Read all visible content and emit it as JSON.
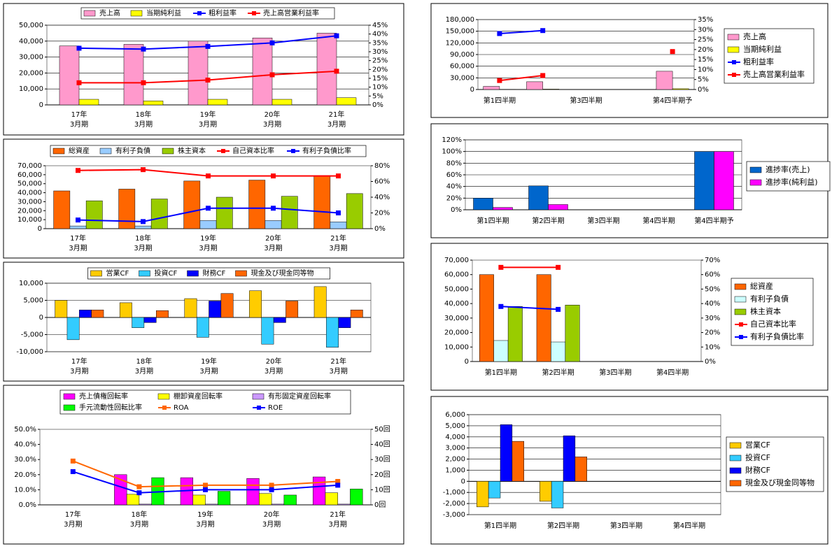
{
  "chart_data": [
    {
      "type": "bar",
      "categories": [
        [
          "17年",
          "3月期"
        ],
        [
          "18年",
          "3月期"
        ],
        [
          "19年",
          "3月期"
        ],
        [
          "20年",
          "3月期"
        ],
        [
          "21年",
          "3月期"
        ]
      ],
      "ylim": [
        0,
        50000
      ],
      "yticks": [
        0,
        {
          "value": 10000,
          "label": "10,000"
        },
        {
          "value": 20000,
          "label": "20,000"
        },
        {
          "value": 30000,
          "label": "30,000"
        },
        {
          "value": 40000,
          "label": "40,000"
        },
        {
          "value": 50000,
          "label": "50,000"
        }
      ],
      "y2lim": [
        0,
        45
      ],
      "y2ticks": [
        {
          "value": 0,
          "label": "0%"
        },
        {
          "value": 5,
          "label": "5%"
        },
        {
          "value": 10,
          "label": "10%"
        },
        {
          "value": 15,
          "label": "15%"
        },
        {
          "value": 20,
          "label": "20%"
        },
        {
          "value": 25,
          "label": "25%"
        },
        {
          "value": 30,
          "label": "30%"
        },
        {
          "value": 35,
          "label": "35%"
        },
        {
          "value": 40,
          "label": "40%"
        },
        {
          "value": 45,
          "label": "45%"
        }
      ],
      "grid": true,
      "legend": "top",
      "series": [
        {
          "name": "売上高",
          "type": "bar",
          "color": "#ff99cc",
          "values": [
            37000,
            38000,
            40000,
            42000,
            45000
          ]
        },
        {
          "name": "当期純利益",
          "type": "bar",
          "color": "#ffff00",
          "values": [
            3500,
            2500,
            3500,
            3500,
            4500
          ]
        },
        {
          "name": "粗利益率",
          "type": "line",
          "axis": "y2",
          "color": "#0000ff",
          "values": [
            32,
            31.5,
            33,
            35,
            39
          ]
        },
        {
          "name": "売上高営業利益率",
          "type": "line",
          "axis": "y2",
          "color": "#ff0000",
          "values": [
            12.5,
            12.5,
            14,
            17,
            19
          ]
        }
      ]
    },
    {
      "type": "bar",
      "categories": [
        [
          "17年",
          "3月期"
        ],
        [
          "18年",
          "3月期"
        ],
        [
          "19年",
          "3月期"
        ],
        [
          "20年",
          "3月期"
        ],
        [
          "21年",
          "3月期"
        ]
      ],
      "ylim": [
        0,
        70000
      ],
      "yticks": [
        0,
        {
          "value": 10000,
          "label": "10,000"
        },
        {
          "value": 20000,
          "label": "20,000"
        },
        {
          "value": 30000,
          "label": "30,000"
        },
        {
          "value": 40000,
          "label": "40,000"
        },
        {
          "value": 50000,
          "label": "50,000"
        },
        {
          "value": 60000,
          "label": "60,000"
        },
        {
          "value": 70000,
          "label": "70,000"
        }
      ],
      "y2lim": [
        0,
        80
      ],
      "y2ticks": [
        {
          "value": 0,
          "label": "0%"
        },
        {
          "value": 20,
          "label": "20%"
        },
        {
          "value": 40,
          "label": "40%"
        },
        {
          "value": 60,
          "label": "60%"
        },
        {
          "value": 80,
          "label": "80%"
        }
      ],
      "grid": false,
      "legend": "top",
      "series": [
        {
          "name": "総資産",
          "type": "bar",
          "color": "#ff6600",
          "values": [
            42000,
            44000,
            53000,
            54000,
            59000
          ]
        },
        {
          "name": "有利子負債",
          "type": "bar",
          "color": "#99ccff",
          "values": [
            3000,
            3000,
            9000,
            9000,
            7500
          ]
        },
        {
          "name": "株主資本",
          "type": "bar",
          "color": "#99cc00",
          "values": [
            31000,
            33000,
            35000,
            36000,
            39000
          ]
        },
        {
          "name": "自己資本比率",
          "type": "line",
          "axis": "y2",
          "color": "#ff0000",
          "values": [
            74,
            75,
            67,
            67,
            67
          ]
        },
        {
          "name": "有利子負債比率",
          "type": "line",
          "axis": "y2",
          "color": "#0000ff",
          "values": [
            11,
            9,
            26,
            26,
            20
          ]
        }
      ]
    },
    {
      "type": "bar",
      "categories": [
        [
          "17年",
          "3月期"
        ],
        [
          "18年",
          "3月期"
        ],
        [
          "19年",
          "3月期"
        ],
        [
          "20年",
          "3月期"
        ],
        [
          "21年",
          "3月期"
        ]
      ],
      "ylim": [
        -10000,
        10000
      ],
      "yticks": [
        {
          "value": -10000,
          "label": "-10,000"
        },
        {
          "value": -5000,
          "label": "-5,000"
        },
        0,
        {
          "value": 5000,
          "label": "5,000"
        },
        {
          "value": 10000,
          "label": "10,000"
        }
      ],
      "grid": true,
      "legend": "top",
      "series": [
        {
          "name": "営業CF",
          "type": "bar",
          "color": "#ffcc00",
          "values": [
            5000,
            4300,
            5500,
            7800,
            9000
          ]
        },
        {
          "name": "投資CF",
          "type": "bar",
          "color": "#33ccff",
          "values": [
            -6500,
            -3000,
            -5800,
            -7800,
            -8700
          ]
        },
        {
          "name": "財務CF",
          "type": "bar",
          "color": "#0000ff",
          "values": [
            2200,
            -1500,
            4800,
            -1500,
            -3000
          ]
        },
        {
          "name": "現金及び現金同等物",
          "type": "bar",
          "color": "#ff6600",
          "values": [
            2200,
            2000,
            7000,
            4800,
            2200
          ]
        }
      ]
    },
    {
      "type": "bar",
      "categories": [
        [
          "17年",
          "3月期"
        ],
        [
          "18年",
          "3月期"
        ],
        [
          "19年",
          "3月期"
        ],
        [
          "20年",
          "3月期"
        ],
        [
          "21年",
          "3月期"
        ]
      ],
      "ylim": [
        0,
        50
      ],
      "yticks": [
        {
          "value": 0,
          "label": "0.0%"
        },
        {
          "value": 10,
          "label": "10.0%"
        },
        {
          "value": 20,
          "label": "20.0%"
        },
        {
          "value": 30,
          "label": "30.0%"
        },
        {
          "value": 40,
          "label": "40.0%"
        },
        {
          "value": 50,
          "label": "50.0%"
        }
      ],
      "y2lim": [
        0,
        50
      ],
      "y2ticks": [
        {
          "value": 0,
          "label": "0回"
        },
        {
          "value": 10,
          "label": "10回"
        },
        {
          "value": 20,
          "label": "20回"
        },
        {
          "value": 30,
          "label": "30回"
        },
        {
          "value": 40,
          "label": "40回"
        },
        {
          "value": 50,
          "label": "50回"
        }
      ],
      "grid": false,
      "legend": "top",
      "series": [
        {
          "name": "売上債権回転率",
          "type": "bar",
          "axis": "y2",
          "color": "#ff00ff",
          "values": [
            null,
            20,
            18,
            17.5,
            18.5
          ]
        },
        {
          "name": "棚卸資産回転率",
          "type": "bar",
          "axis": "y2",
          "color": "#ffff00",
          "values": [
            null,
            7,
            6.5,
            7.5,
            8
          ]
        },
        {
          "name": "有形固定資産回転率",
          "type": "bar",
          "axis": "y2",
          "color": "#cc99ff",
          "values": [
            null,
            0.5,
            0.5,
            0.5,
            0.5
          ]
        },
        {
          "name": "手元流動性回転比率",
          "type": "bar",
          "axis": "y2",
          "color": "#00ff00",
          "values": [
            null,
            18,
            9,
            6.5,
            10.5
          ]
        },
        {
          "name": "ROA",
          "type": "line",
          "color": "#ff6600",
          "values": [
            29,
            12,
            13,
            13,
            15.5
          ]
        },
        {
          "name": "ROE",
          "type": "line",
          "color": "#0000ff",
          "values": [
            22,
            8,
            10,
            10,
            13
          ]
        }
      ]
    },
    {
      "type": "bar",
      "categories": [
        "第1四半期",
        null,
        "第3四半期",
        null,
        "第4四半期予"
      ],
      "ylim": [
        0,
        180000
      ],
      "yticks": [
        0,
        {
          "value": 30000,
          "label": "30,000"
        },
        {
          "value": 60000,
          "label": "60,000"
        },
        {
          "value": 90000,
          "label": "90,000"
        },
        {
          "value": 120000,
          "label": "120,000"
        },
        {
          "value": 150000,
          "label": "150,000"
        },
        {
          "value": 180000,
          "label": "180,000"
        }
      ],
      "y2lim": [
        0,
        35
      ],
      "y2ticks": [
        {
          "value": 0,
          "label": "0%"
        },
        {
          "value": 5,
          "label": "5%"
        },
        {
          "value": 10,
          "label": "10%"
        },
        {
          "value": 15,
          "label": "15%"
        },
        {
          "value": 20,
          "label": "20%"
        },
        {
          "value": 25,
          "label": "25%"
        },
        {
          "value": 30,
          "label": "30%"
        },
        {
          "value": 35,
          "label": "35%"
        }
      ],
      "grid": true,
      "legend": "right",
      "series": [
        {
          "name": "売上高",
          "type": "bar",
          "color": "#ff99cc",
          "values": [
            8000,
            20000,
            null,
            null,
            47000
          ]
        },
        {
          "name": "当期純利益",
          "type": "bar",
          "color": "#ffff00",
          "values": [
            500,
            1000,
            null,
            null,
            2000
          ]
        },
        {
          "name": "粗利益率",
          "type": "line",
          "axis": "y2",
          "color": "#0000ff",
          "values": [
            28,
            29.5,
            null,
            null,
            null
          ]
        },
        {
          "name": "売上高営業利益率",
          "type": "line",
          "axis": "y2",
          "color": "#ff0000",
          "values": [
            4.5,
            7,
            null,
            null,
            19
          ]
        }
      ]
    },
    {
      "type": "bar",
      "categories": [
        "第1四半期",
        "第2四半期",
        "第3四半期",
        "第4四半期",
        "第4四半期予"
      ],
      "ylim": [
        0,
        120
      ],
      "yticks": [
        {
          "value": 0,
          "label": "0%"
        },
        {
          "value": 20,
          "label": "20%"
        },
        {
          "value": 40,
          "label": "40%"
        },
        {
          "value": 60,
          "label": "60%"
        },
        {
          "value": 80,
          "label": "80%"
        },
        {
          "value": 100,
          "label": "100%"
        },
        {
          "value": 120,
          "label": "120%"
        }
      ],
      "grid": true,
      "legend": "right",
      "series": [
        {
          "name": "進捗率(売上)",
          "type": "bar",
          "color": "#0066cc",
          "values": [
            20,
            41,
            null,
            null,
            100
          ]
        },
        {
          "name": "進捗率(純利益)",
          "type": "bar",
          "color": "#ff00ff",
          "values": [
            4,
            9,
            null,
            null,
            100
          ]
        }
      ]
    },
    {
      "type": "bar",
      "categories": [
        "第1四半期",
        "第2四半期",
        "第3四半期",
        "第4四半期"
      ],
      "ylim": [
        0,
        70000
      ],
      "yticks": [
        0,
        {
          "value": 10000,
          "label": "10,000"
        },
        {
          "value": 20000,
          "label": "20,000"
        },
        {
          "value": 30000,
          "label": "30,000"
        },
        {
          "value": 40000,
          "label": "40,000"
        },
        {
          "value": 50000,
          "label": "50,000"
        },
        {
          "value": 60000,
          "label": "60,000"
        },
        {
          "value": 70000,
          "label": "70,000"
        }
      ],
      "y2lim": [
        0,
        70
      ],
      "y2ticks": [
        {
          "value": 0,
          "label": "0%"
        },
        {
          "value": 10,
          "label": "10%"
        },
        {
          "value": 20,
          "label": "20%"
        },
        {
          "value": 30,
          "label": "30%"
        },
        {
          "value": 40,
          "label": "40%"
        },
        {
          "value": 50,
          "label": "50%"
        },
        {
          "value": 60,
          "label": "60%"
        },
        {
          "value": 70,
          "label": "70%"
        }
      ],
      "grid": false,
      "legend": "right",
      "series": [
        {
          "name": "総資産",
          "type": "bar",
          "color": "#ff6600",
          "values": [
            60000,
            60000,
            null,
            null
          ]
        },
        {
          "name": "有利子負債",
          "type": "bar",
          "color": "#ccffff",
          "values": [
            14500,
            13500,
            null,
            null
          ]
        },
        {
          "name": "株主資本",
          "type": "bar",
          "color": "#99cc00",
          "values": [
            38000,
            39000,
            null,
            null
          ]
        },
        {
          "name": "自己資本比率",
          "type": "line",
          "axis": "y2",
          "color": "#ff0000",
          "values": [
            65,
            65,
            null,
            null
          ]
        },
        {
          "name": "有利子負債比率",
          "type": "line",
          "axis": "y2",
          "color": "#0000ff",
          "values": [
            38,
            36,
            null,
            null
          ]
        }
      ]
    },
    {
      "type": "bar",
      "categories": [
        "第1四半期",
        "第2四半期",
        "第3四半期",
        "第4四半期"
      ],
      "ylim": [
        -3000,
        6000
      ],
      "yticks": [
        {
          "value": -3000,
          "label": "-3,000"
        },
        {
          "value": -2000,
          "label": "-2,000"
        },
        {
          "value": -1000,
          "label": "-1,000"
        },
        0,
        {
          "value": 1000,
          "label": "1,000"
        },
        {
          "value": 2000,
          "label": "2,000"
        },
        {
          "value": 3000,
          "label": "3,000"
        },
        {
          "value": 4000,
          "label": "4,000"
        },
        {
          "value": 5000,
          "label": "5,000"
        },
        {
          "value": 6000,
          "label": "6,000"
        }
      ],
      "grid": true,
      "legend": "right",
      "series": [
        {
          "name": "営業CF",
          "type": "bar",
          "color": "#ffcc00",
          "values": [
            -2300,
            -1800,
            null,
            null
          ]
        },
        {
          "name": "投資CF",
          "type": "bar",
          "color": "#33ccff",
          "values": [
            -1500,
            -2400,
            null,
            null
          ]
        },
        {
          "name": "財務CF",
          "type": "bar",
          "color": "#0000ff",
          "values": [
            5100,
            4100,
            null,
            null
          ]
        },
        {
          "name": "現金及び現金同等物",
          "type": "bar",
          "color": "#ff6600",
          "values": [
            3600,
            2200,
            null,
            null
          ]
        }
      ]
    }
  ]
}
